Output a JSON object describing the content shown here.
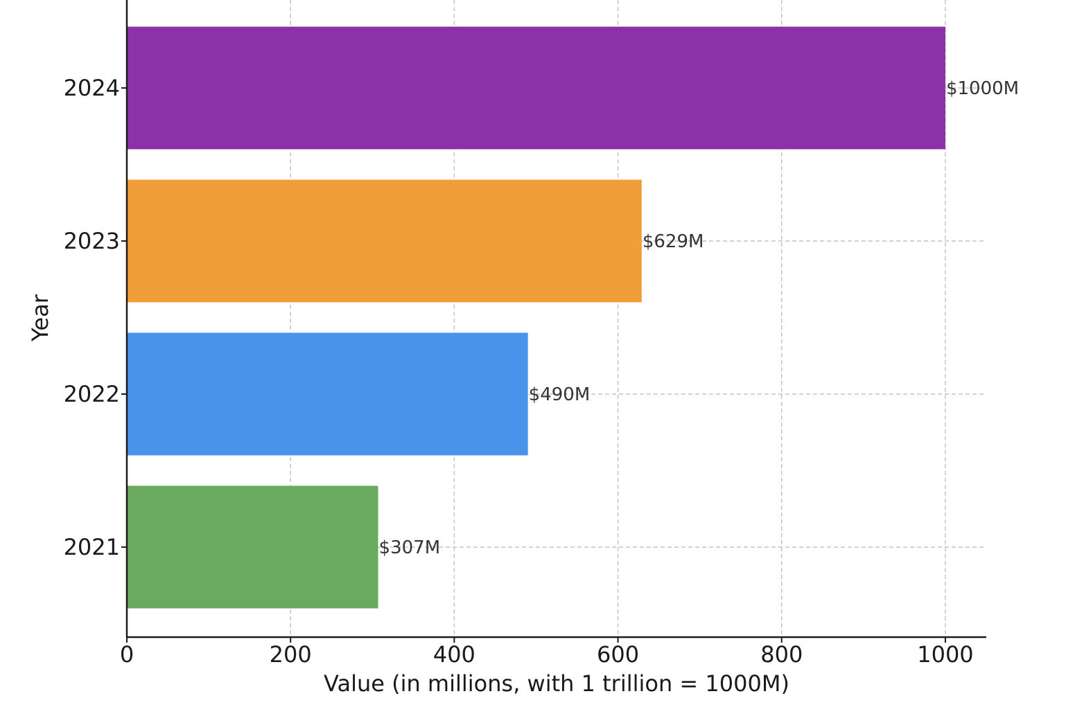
{
  "chart_data": {
    "type": "bar",
    "orientation": "horizontal",
    "categories": [
      "2021",
      "2022",
      "2023",
      "2024"
    ],
    "values": [
      307,
      490,
      629,
      1000
    ],
    "data_labels": [
      "$307M",
      "$490M",
      "$629M",
      "$1000M"
    ],
    "colors": [
      "#6aaa5e",
      "#4a93ea",
      "#f09e3a",
      "#8c32a8"
    ],
    "title": "",
    "xlabel": "Value (in millions, with 1 trillion = 1000M)",
    "ylabel": "Year",
    "xlim": [
      0,
      1050
    ],
    "x_ticks": [
      0,
      200,
      400,
      600,
      800,
      1000
    ],
    "grid": true
  }
}
